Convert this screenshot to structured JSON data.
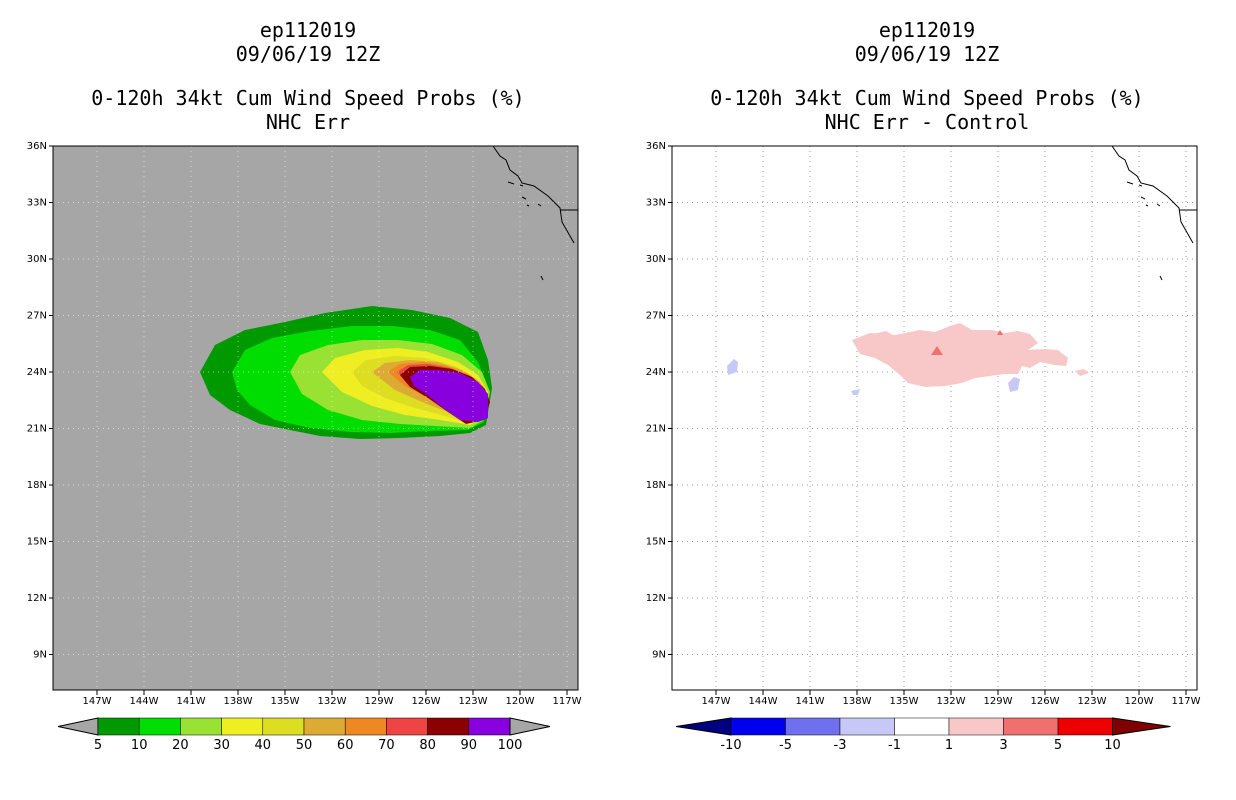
{
  "left_panel": {
    "title_line1": "ep112019",
    "title_line2": "09/06/19 12Z",
    "title_line3": "0-120h 34kt Cum Wind Speed Probs (%)",
    "title_line4": "NHC Err",
    "background_color": "#a6a6a6",
    "colorbar": {
      "labels": [
        "5",
        "10",
        "20",
        "30",
        "40",
        "50",
        "60",
        "70",
        "80",
        "90",
        "100"
      ],
      "colors": [
        "#009900",
        "#00dd00",
        "#99e133",
        "#eeee22",
        "#dddd22",
        "#ddaa33",
        "#ee8822",
        "#ee4444",
        "#8b0000",
        "#8800dd"
      ]
    }
  },
  "right_panel": {
    "title_line1": "ep112019",
    "title_line2": "09/06/19 12Z",
    "title_line3": "0-120h 34kt Cum Wind Speed Probs (%)",
    "title_line4": "NHC Err - Control",
    "colorbar": {
      "labels": [
        "-10",
        "-5",
        "-3",
        "-1",
        "1",
        "3",
        "5",
        "10"
      ],
      "colors": [
        "#000080",
        "#0000ee",
        "#7070ee",
        "#c8c8f8",
        "#ffffff",
        "#f8c8c8",
        "#f07070",
        "#ee0000",
        "#800000"
      ]
    }
  },
  "axes": {
    "lat_labels": [
      "36N",
      "33N",
      "30N",
      "27N",
      "24N",
      "21N",
      "18N",
      "15N",
      "12N",
      "9N"
    ],
    "lon_labels": [
      "147W",
      "144W",
      "141W",
      "138W",
      "135W",
      "132W",
      "129W",
      "126W",
      "123W",
      "120W",
      "117W"
    ]
  }
}
